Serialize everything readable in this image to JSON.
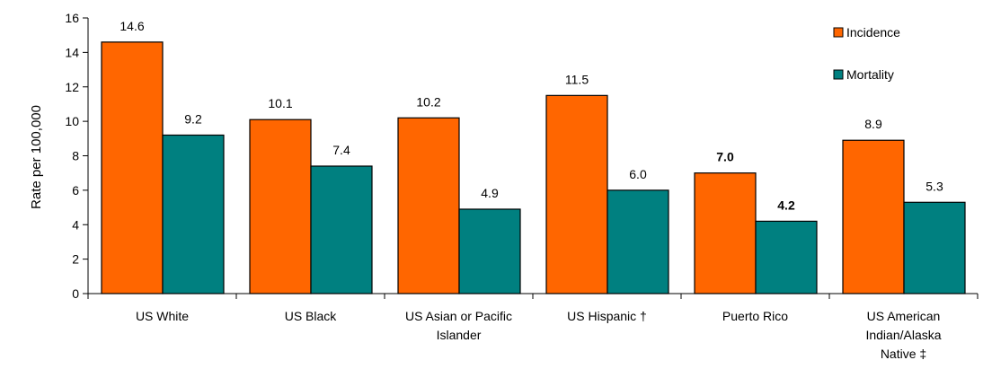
{
  "chart_data": {
    "type": "bar",
    "ylabel": "Rate per 100,000",
    "ylim": [
      0,
      16
    ],
    "yticks": [
      0,
      2,
      4,
      6,
      8,
      10,
      12,
      14,
      16
    ],
    "categories": [
      [
        "US White"
      ],
      [
        "US Black"
      ],
      [
        "US Asian or Pacific",
        "Islander"
      ],
      [
        "US Hispanic †"
      ],
      [
        "Puerto Rico"
      ],
      [
        "US American",
        "Indian/Alaska",
        "Native ‡"
      ]
    ],
    "series": [
      {
        "name": "Incidence",
        "color": "#FF6600",
        "values": [
          14.6,
          10.1,
          10.2,
          11.5,
          7.0,
          8.9
        ],
        "labels": [
          "14.6",
          "10.1",
          "10.2",
          "11.5",
          "7.0",
          "8.9"
        ],
        "bold": [
          false,
          false,
          false,
          false,
          true,
          false
        ]
      },
      {
        "name": "Mortality",
        "color": "#008080",
        "values": [
          9.2,
          7.4,
          4.9,
          6.0,
          4.2,
          5.3
        ],
        "labels": [
          "9.2",
          "7.4",
          "4.9",
          "6.0",
          "4.2",
          "5.3"
        ],
        "bold": [
          false,
          false,
          false,
          false,
          true,
          false
        ]
      }
    ],
    "legend_position": "top-right",
    "grid": false
  }
}
